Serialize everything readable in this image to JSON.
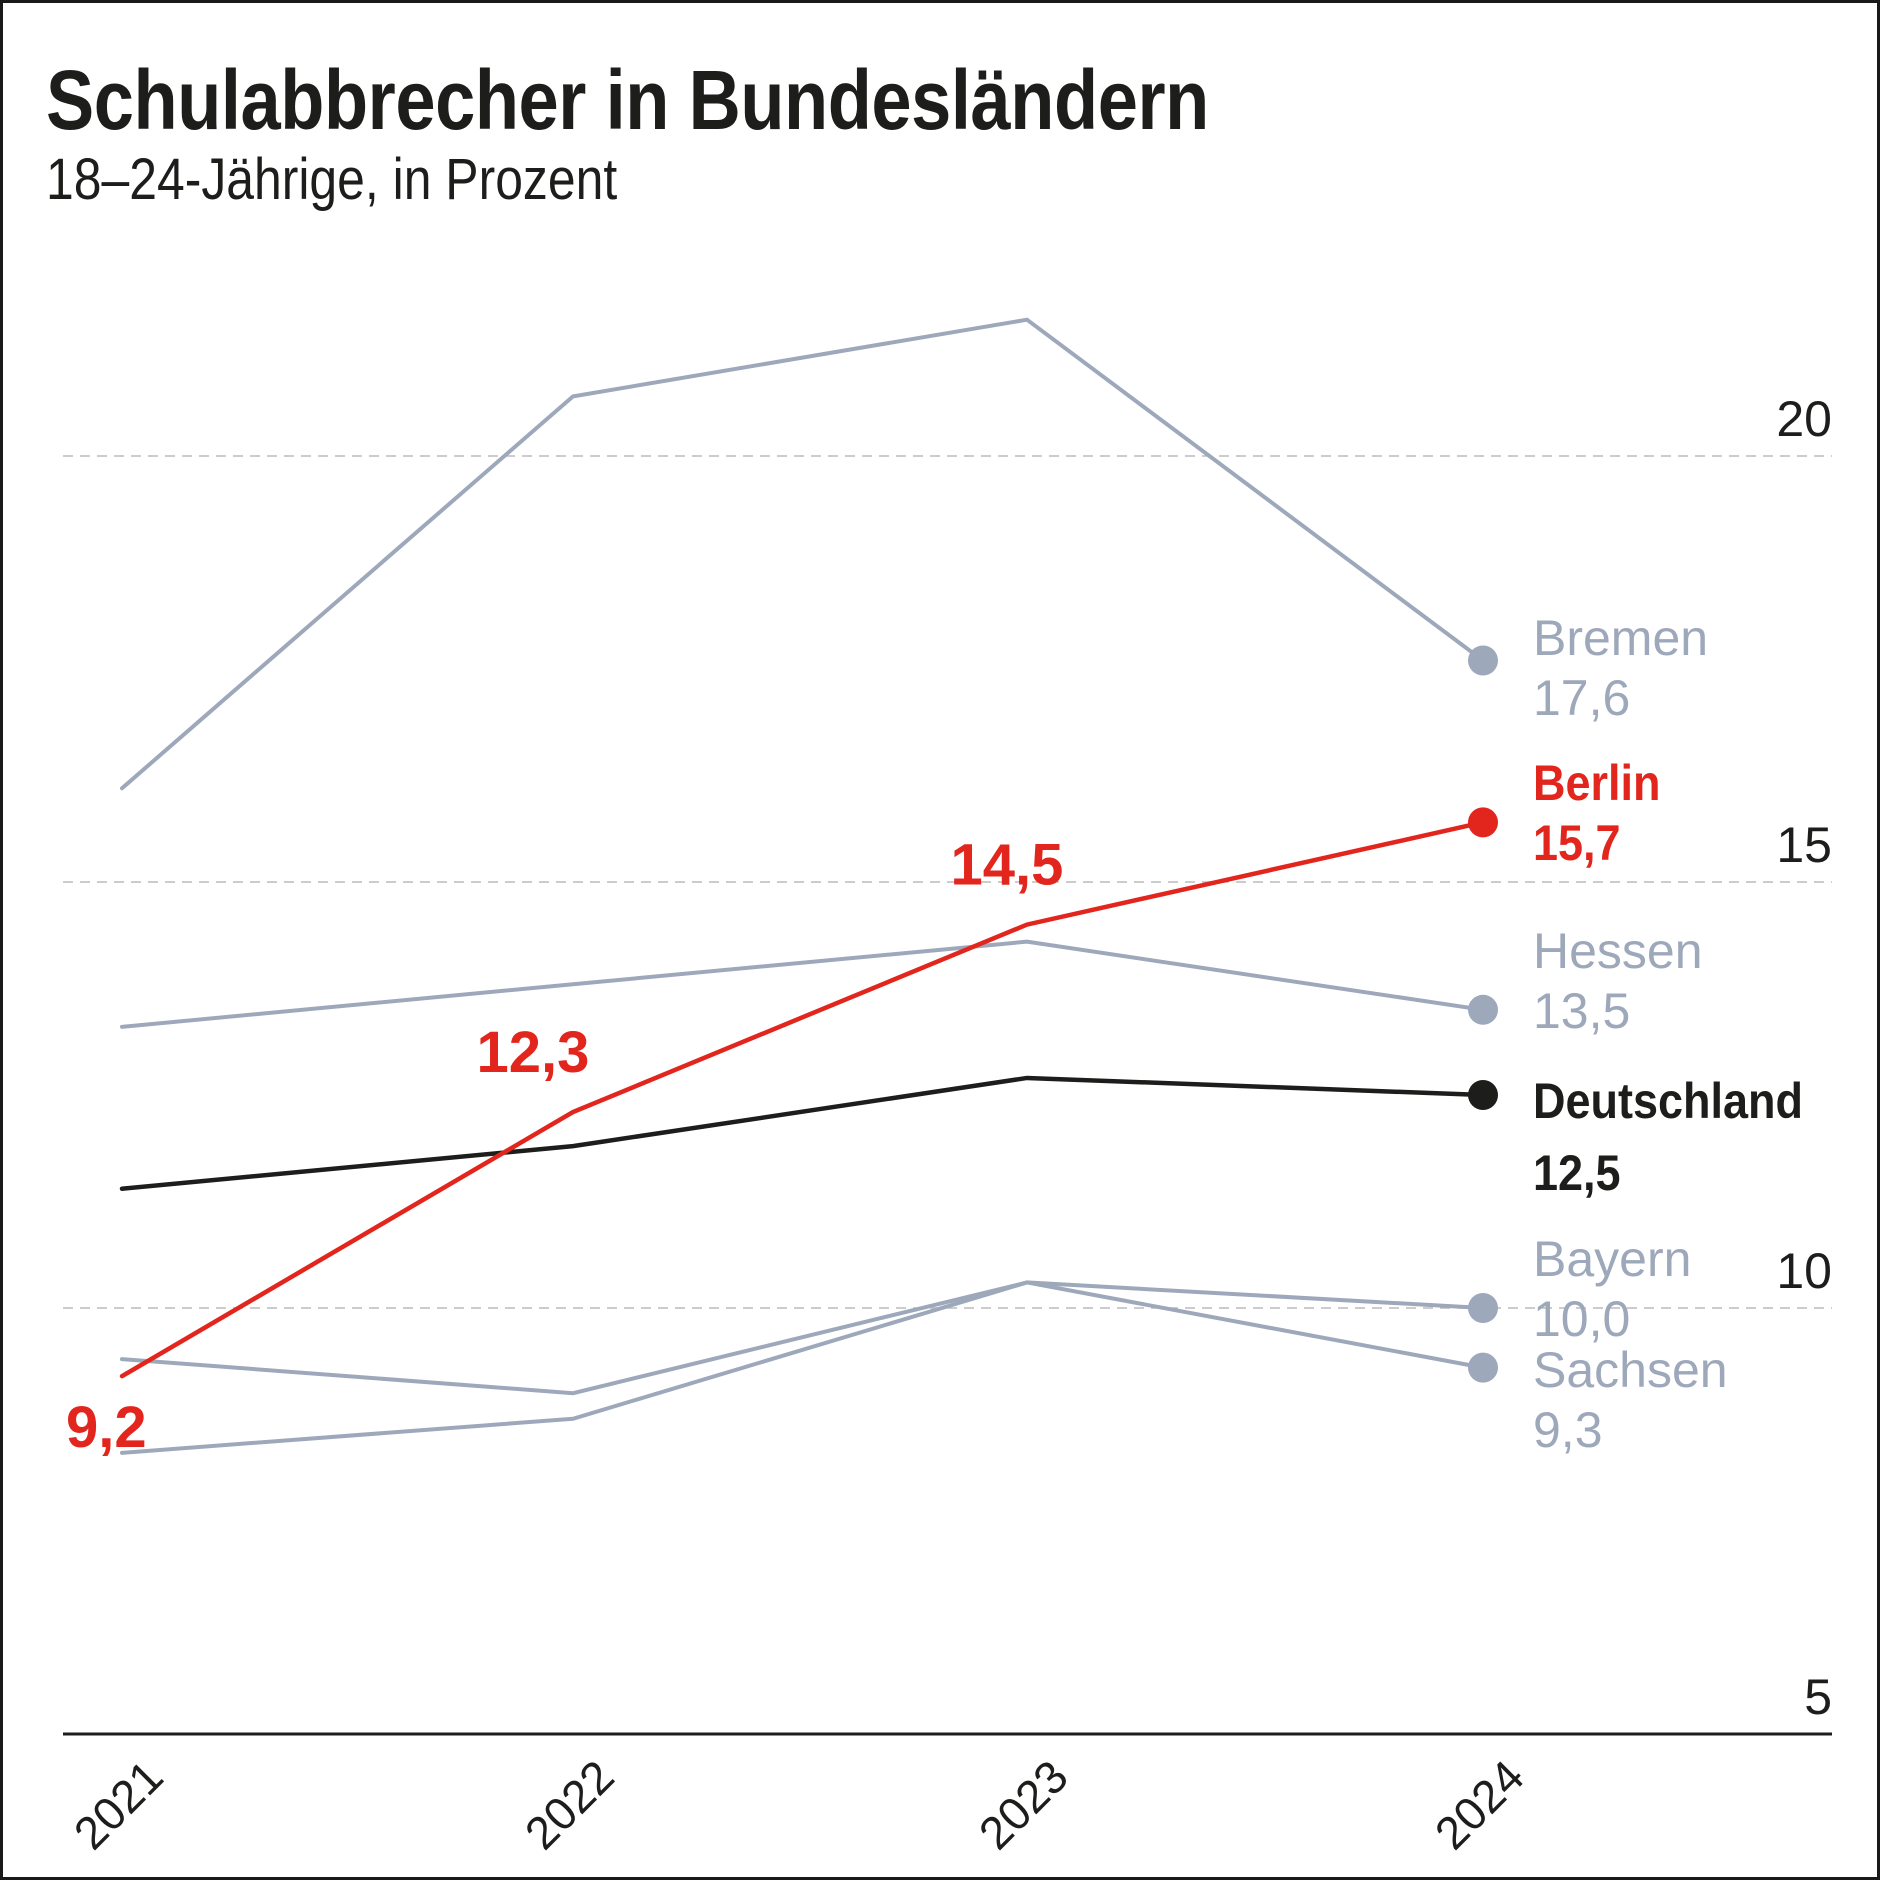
{
  "header": {
    "title": "Schulabbrecher in Bundesländern",
    "subtitle": "18–24-Jährige, in Prozent"
  },
  "colors": {
    "highlight": "#e2261d",
    "national": "#1d1d1b",
    "muted": "#9ea8bb",
    "grid": "#bbbbbb",
    "text": "#1d1d1b"
  },
  "chart_data": {
    "type": "line",
    "title": "Schulabbrecher in Bundesländern",
    "subtitle": "18–24-Jährige, in Prozent",
    "xlabel": "",
    "ylabel": "",
    "x": [
      "2021",
      "2022",
      "2023",
      "2024"
    ],
    "ylim": [
      5,
      22
    ],
    "yticks": [
      5,
      10,
      15,
      20
    ],
    "ytick_labels": [
      "5",
      "10",
      "15",
      "20"
    ],
    "grid": true,
    "legend": "none (direct labels at line ends, right)",
    "series": [
      {
        "name": "Bremen",
        "role": "muted",
        "values": [
          16.1,
          20.7,
          21.6,
          17.6
        ],
        "end_label": "17,6"
      },
      {
        "name": "Berlin",
        "role": "highlight",
        "values": [
          9.2,
          12.3,
          14.5,
          15.7
        ],
        "end_label": "15,7",
        "point_labels": [
          "9,2",
          "12,3",
          "14,5",
          null
        ]
      },
      {
        "name": "Hessen",
        "role": "muted",
        "values": [
          13.3,
          13.8,
          14.3,
          13.5
        ],
        "end_label": "13,5"
      },
      {
        "name": "Deutschland",
        "role": "national",
        "values": [
          11.4,
          11.9,
          12.7,
          12.5
        ],
        "end_label": "12,5"
      },
      {
        "name": "Bayern",
        "role": "muted",
        "values": [
          9.4,
          9.0,
          10.3,
          10.0
        ],
        "end_label": "10,0"
      },
      {
        "name": "Sachsen",
        "role": "muted",
        "values": [
          8.3,
          8.7,
          10.3,
          9.3
        ],
        "end_label": "9,3"
      }
    ]
  }
}
